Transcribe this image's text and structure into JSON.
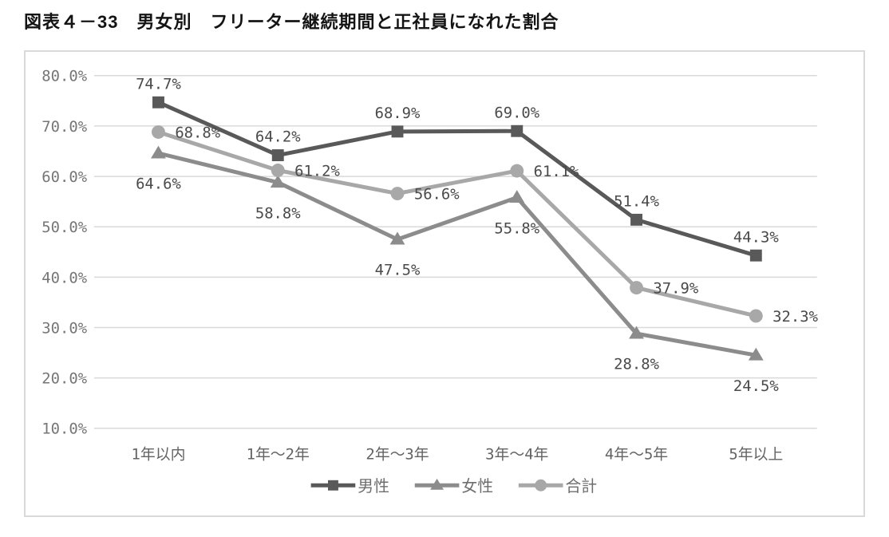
{
  "title": "図表４－33　男女別　フリーター継続期間と正社員になれた割合",
  "chart_data": {
    "type": "line",
    "categories": [
      "1年以内",
      "1年〜2年",
      "2年〜3年",
      "3年〜4年",
      "4年〜5年",
      "5年以上"
    ],
    "series": [
      {
        "name": "男性",
        "marker": "square",
        "color": "#595959",
        "label_position": "above",
        "values": [
          74.7,
          64.2,
          68.9,
          69.0,
          51.4,
          44.3
        ]
      },
      {
        "name": "女性",
        "marker": "triangle",
        "color": "#8c8c8c",
        "label_position": "below",
        "values": [
          64.6,
          58.8,
          47.5,
          55.8,
          28.8,
          24.5
        ]
      },
      {
        "name": "合計",
        "marker": "circle",
        "color": "#a8a8a8",
        "label_position": "right",
        "values": [
          68.8,
          61.2,
          56.6,
          61.1,
          37.9,
          32.3
        ]
      }
    ],
    "ylim": [
      10,
      80
    ],
    "ytick_labels": [
      "80.0%",
      "70.0%",
      "60.0%",
      "50.0%",
      "40.0%",
      "30.0%",
      "20.0%",
      "10.0%"
    ],
    "grid": true,
    "legend_position": "bottom",
    "data_label_suffix": "%"
  },
  "colors": {
    "gridline": "#d9d9d9",
    "frame_border": "#d9d9d9",
    "tick_text": "#767676",
    "category_text": "#636363",
    "data_label_text": "#4a4a4a",
    "legend_text": "#6e6e6e",
    "background": "#ffffff"
  }
}
